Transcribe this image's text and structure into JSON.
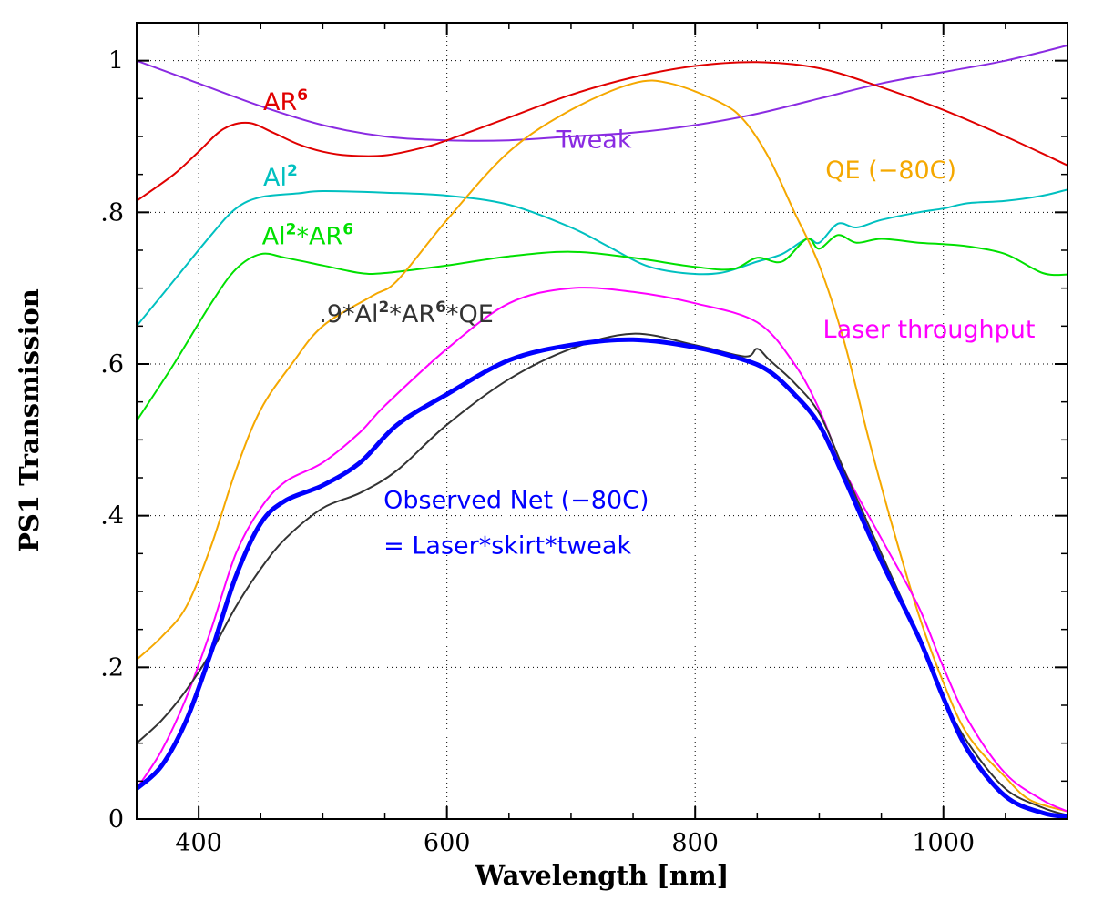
{
  "chart_data": {
    "type": "line",
    "xlabel": "Wavelength [nm]",
    "ylabel": "PS1 Transmission",
    "xlim": [
      350,
      1100
    ],
    "ylim": [
      0,
      1.05
    ],
    "grid": true,
    "x_ticks": [
      {
        "value": 400,
        "label": "400"
      },
      {
        "value": 600,
        "label": "600"
      },
      {
        "value": 800,
        "label": "800"
      },
      {
        "value": 1000,
        "label": "1000"
      }
    ],
    "y_ticks": [
      {
        "value": 0,
        "label": "0"
      },
      {
        "value": 0.2,
        "label": ".2"
      },
      {
        "value": 0.4,
        "label": ".4"
      },
      {
        "value": 0.6,
        "label": ".6"
      },
      {
        "value": 0.8,
        "label": ".8"
      },
      {
        "value": 1.0,
        "label": "1"
      }
    ],
    "series": [
      {
        "id": "tweak",
        "name": "Tweak",
        "color": "#8a2be2",
        "width": 2,
        "points": [
          [
            350,
            1.0
          ],
          [
            400,
            0.97
          ],
          [
            450,
            0.94
          ],
          [
            500,
            0.915
          ],
          [
            550,
            0.9
          ],
          [
            600,
            0.895
          ],
          [
            650,
            0.895
          ],
          [
            700,
            0.9
          ],
          [
            750,
            0.905
          ],
          [
            800,
            0.915
          ],
          [
            850,
            0.93
          ],
          [
            900,
            0.95
          ],
          [
            950,
            0.97
          ],
          [
            1000,
            0.985
          ],
          [
            1050,
            1.0
          ],
          [
            1100,
            1.02
          ]
        ]
      },
      {
        "id": "ar6",
        "name": "AR6",
        "color": "#e00000",
        "width": 2,
        "points": [
          [
            350,
            0.815
          ],
          [
            380,
            0.85
          ],
          [
            400,
            0.88
          ],
          [
            420,
            0.91
          ],
          [
            440,
            0.918
          ],
          [
            460,
            0.905
          ],
          [
            480,
            0.89
          ],
          [
            500,
            0.88
          ],
          [
            520,
            0.875
          ],
          [
            550,
            0.875
          ],
          [
            580,
            0.885
          ],
          [
            600,
            0.895
          ],
          [
            650,
            0.925
          ],
          [
            700,
            0.955
          ],
          [
            750,
            0.978
          ],
          [
            800,
            0.993
          ],
          [
            850,
            0.998
          ],
          [
            900,
            0.99
          ],
          [
            950,
            0.965
          ],
          [
            1000,
            0.935
          ],
          [
            1050,
            0.9
          ],
          [
            1100,
            0.862
          ]
        ]
      },
      {
        "id": "al2",
        "name": "Al2",
        "color": "#00c0c0",
        "width": 2,
        "points": [
          [
            350,
            0.65
          ],
          [
            380,
            0.71
          ],
          [
            410,
            0.77
          ],
          [
            430,
            0.805
          ],
          [
            450,
            0.82
          ],
          [
            480,
            0.825
          ],
          [
            500,
            0.828
          ],
          [
            550,
            0.826
          ],
          [
            600,
            0.822
          ],
          [
            650,
            0.81
          ],
          [
            700,
            0.78
          ],
          [
            730,
            0.755
          ],
          [
            760,
            0.73
          ],
          [
            790,
            0.72
          ],
          [
            820,
            0.72
          ],
          [
            850,
            0.735
          ],
          [
            870,
            0.745
          ],
          [
            890,
            0.765
          ],
          [
            900,
            0.76
          ],
          [
            915,
            0.785
          ],
          [
            930,
            0.78
          ],
          [
            950,
            0.79
          ],
          [
            980,
            0.8
          ],
          [
            1000,
            0.805
          ],
          [
            1020,
            0.812
          ],
          [
            1050,
            0.815
          ],
          [
            1080,
            0.822
          ],
          [
            1100,
            0.83
          ]
        ]
      },
      {
        "id": "al2ar6",
        "name": "Al2*AR6",
        "color": "#00e000",
        "width": 2,
        "points": [
          [
            350,
            0.525
          ],
          [
            380,
            0.6
          ],
          [
            410,
            0.68
          ],
          [
            430,
            0.725
          ],
          [
            450,
            0.745
          ],
          [
            470,
            0.74
          ],
          [
            500,
            0.73
          ],
          [
            530,
            0.72
          ],
          [
            550,
            0.72
          ],
          [
            600,
            0.73
          ],
          [
            650,
            0.742
          ],
          [
            700,
            0.748
          ],
          [
            750,
            0.74
          ],
          [
            800,
            0.728
          ],
          [
            830,
            0.725
          ],
          [
            850,
            0.74
          ],
          [
            870,
            0.735
          ],
          [
            890,
            0.765
          ],
          [
            900,
            0.752
          ],
          [
            915,
            0.77
          ],
          [
            930,
            0.76
          ],
          [
            950,
            0.765
          ],
          [
            980,
            0.76
          ],
          [
            1000,
            0.758
          ],
          [
            1020,
            0.755
          ],
          [
            1050,
            0.745
          ],
          [
            1080,
            0.72
          ],
          [
            1100,
            0.718
          ]
        ]
      },
      {
        "id": "qe",
        "name": "QE (−80C)",
        "color": "#f5a800",
        "width": 2,
        "points": [
          [
            350,
            0.21
          ],
          [
            370,
            0.24
          ],
          [
            390,
            0.28
          ],
          [
            410,
            0.36
          ],
          [
            430,
            0.46
          ],
          [
            450,
            0.54
          ],
          [
            475,
            0.6
          ],
          [
            500,
            0.65
          ],
          [
            540,
            0.69
          ],
          [
            560,
            0.71
          ],
          [
            600,
            0.79
          ],
          [
            650,
            0.88
          ],
          [
            700,
            0.935
          ],
          [
            750,
            0.97
          ],
          [
            780,
            0.97
          ],
          [
            820,
            0.945
          ],
          [
            840,
            0.92
          ],
          [
            860,
            0.87
          ],
          [
            880,
            0.8
          ],
          [
            900,
            0.73
          ],
          [
            920,
            0.63
          ],
          [
            940,
            0.5
          ],
          [
            960,
            0.38
          ],
          [
            980,
            0.27
          ],
          [
            1000,
            0.18
          ],
          [
            1020,
            0.11
          ],
          [
            1050,
            0.055
          ],
          [
            1070,
            0.025
          ],
          [
            1100,
            0.01
          ]
        ]
      },
      {
        "id": "laser",
        "name": "Laser throughput",
        "color": "#ff00ff",
        "width": 2,
        "points": [
          [
            350,
            0.04
          ],
          [
            370,
            0.09
          ],
          [
            390,
            0.16
          ],
          [
            410,
            0.25
          ],
          [
            430,
            0.35
          ],
          [
            450,
            0.41
          ],
          [
            470,
            0.445
          ],
          [
            500,
            0.47
          ],
          [
            530,
            0.51
          ],
          [
            550,
            0.545
          ],
          [
            600,
            0.62
          ],
          [
            650,
            0.68
          ],
          [
            700,
            0.7
          ],
          [
            750,
            0.695
          ],
          [
            800,
            0.68
          ],
          [
            850,
            0.655
          ],
          [
            880,
            0.6
          ],
          [
            900,
            0.54
          ],
          [
            920,
            0.46
          ],
          [
            950,
            0.37
          ],
          [
            980,
            0.28
          ],
          [
            1000,
            0.2
          ],
          [
            1020,
            0.13
          ],
          [
            1050,
            0.06
          ],
          [
            1080,
            0.025
          ],
          [
            1100,
            0.01
          ]
        ]
      },
      {
        "id": "product",
        "name": ".9*Al2*AR6*QE",
        "color": "#333333",
        "width": 2,
        "points": [
          [
            350,
            0.1
          ],
          [
            370,
            0.13
          ],
          [
            390,
            0.17
          ],
          [
            410,
            0.22
          ],
          [
            430,
            0.28
          ],
          [
            450,
            0.33
          ],
          [
            470,
            0.37
          ],
          [
            500,
            0.41
          ],
          [
            530,
            0.43
          ],
          [
            560,
            0.46
          ],
          [
            600,
            0.52
          ],
          [
            650,
            0.58
          ],
          [
            700,
            0.62
          ],
          [
            750,
            0.64
          ],
          [
            800,
            0.625
          ],
          [
            840,
            0.61
          ],
          [
            850,
            0.62
          ],
          [
            860,
            0.605
          ],
          [
            880,
            0.575
          ],
          [
            900,
            0.535
          ],
          [
            920,
            0.46
          ],
          [
            950,
            0.35
          ],
          [
            980,
            0.24
          ],
          [
            1000,
            0.16
          ],
          [
            1020,
            0.1
          ],
          [
            1050,
            0.04
          ],
          [
            1080,
            0.015
          ],
          [
            1100,
            0.005
          ]
        ]
      },
      {
        "id": "observed",
        "name": "Observed Net (−80C)",
        "color": "#0000ff",
        "width": 5,
        "points": [
          [
            350,
            0.04
          ],
          [
            370,
            0.07
          ],
          [
            390,
            0.13
          ],
          [
            410,
            0.22
          ],
          [
            430,
            0.32
          ],
          [
            450,
            0.39
          ],
          [
            470,
            0.42
          ],
          [
            500,
            0.44
          ],
          [
            530,
            0.47
          ],
          [
            560,
            0.52
          ],
          [
            600,
            0.56
          ],
          [
            650,
            0.605
          ],
          [
            700,
            0.625
          ],
          [
            750,
            0.632
          ],
          [
            800,
            0.622
          ],
          [
            840,
            0.605
          ],
          [
            860,
            0.59
          ],
          [
            880,
            0.56
          ],
          [
            900,
            0.52
          ],
          [
            920,
            0.45
          ],
          [
            950,
            0.34
          ],
          [
            980,
            0.24
          ],
          [
            1000,
            0.16
          ],
          [
            1020,
            0.09
          ],
          [
            1050,
            0.03
          ],
          [
            1080,
            0.008
          ],
          [
            1100,
            0.003
          ]
        ]
      }
    ],
    "annotations": [
      {
        "id": "ar6",
        "text": "AR",
        "sup": "6",
        "x": 452,
        "y": 0.935,
        "color": "#e00000"
      },
      {
        "id": "tweak",
        "text": "Tweak",
        "sup": "",
        "x": 688,
        "y": 0.885,
        "color": "#8a2be2"
      },
      {
        "id": "al2",
        "text": "Al",
        "sup": "2",
        "x": 452,
        "y": 0.835,
        "color": "#00c0c0"
      },
      {
        "id": "qe",
        "text": "QE (−80C)",
        "sup": "",
        "x": 905,
        "y": 0.845,
        "color": "#f5a800"
      },
      {
        "id": "al2ar6",
        "parts": [
          {
            "t": "Al"
          },
          {
            "t": "2",
            "sup": true
          },
          {
            "t": "*AR"
          },
          {
            "t": "6",
            "sup": true
          }
        ],
        "x": 451,
        "y": 0.758,
        "color": "#00e000"
      },
      {
        "id": "product",
        "parts": [
          {
            "t": ".9*Al"
          },
          {
            "t": "2",
            "sup": true
          },
          {
            "t": "*AR"
          },
          {
            "t": "6",
            "sup": true
          },
          {
            "t": "*QE"
          }
        ],
        "x": 497,
        "y": 0.655,
        "color": "#333333"
      },
      {
        "id": "laser",
        "text": "Laser throughput",
        "sup": "",
        "x": 903,
        "y": 0.635,
        "color": "#ff00ff"
      },
      {
        "id": "observed1",
        "text": "Observed Net (−80C)",
        "sup": "",
        "x": 549,
        "y": 0.41,
        "color": "#0000ff"
      },
      {
        "id": "observed2",
        "text": "= Laser*skirt*tweak",
        "sup": "",
        "x": 549,
        "y": 0.35,
        "color": "#0000ff"
      }
    ]
  }
}
